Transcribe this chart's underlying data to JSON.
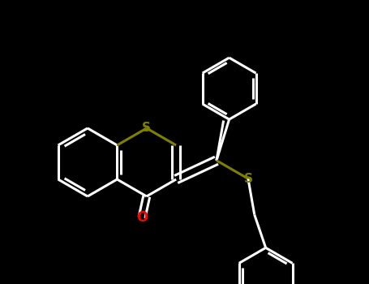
{
  "background_color": "#000000",
  "bond_color": "#ffffff",
  "S_color": "#808000",
  "O_color": "#ff0000",
  "line_width": 2.2,
  "fig_width": 4.55,
  "fig_height": 3.5,
  "dpi": 100,
  "xlim": [
    0,
    455
  ],
  "ylim": [
    0,
    350
  ]
}
